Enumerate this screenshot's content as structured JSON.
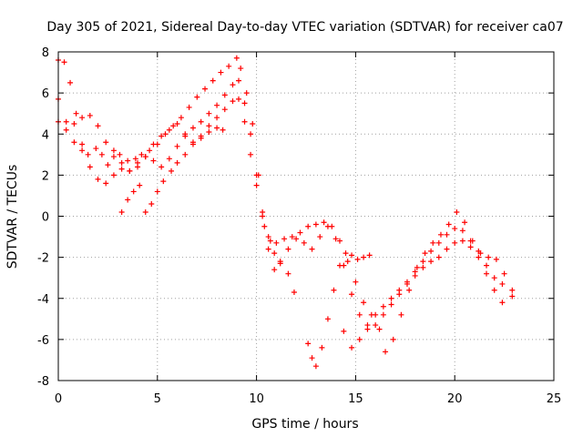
{
  "chart_data": {
    "type": "scatter",
    "title": "Day 305 of 2021, Sidereal Day-to-day VTEC variation (SDTVAR) for receiver ca07",
    "xlabel": "GPS time / hours",
    "ylabel": "SDTVAR / TECUs",
    "xlim": [
      0,
      25
    ],
    "ylim": [
      -8,
      8
    ],
    "x_ticks": [
      "0",
      "5",
      "10",
      "15",
      "20",
      "25"
    ],
    "y_ticks": [
      "8",
      "6",
      "4",
      "2",
      "0",
      "-2",
      "-4",
      "-6",
      "-8"
    ],
    "grid": true,
    "marker": "+",
    "colors": {
      "series": "#ff0000",
      "grid": "#a0a0a0",
      "axis": "#000000"
    },
    "series": [
      {
        "values": [
          [
            0.0,
            7.6
          ],
          [
            0.3,
            7.5
          ],
          [
            0.6,
            6.5
          ],
          [
            0.9,
            5.0
          ],
          [
            1.2,
            3.5
          ],
          [
            1.5,
            3.0
          ],
          [
            1.9,
            3.3
          ],
          [
            2.2,
            3.0
          ],
          [
            2.5,
            2.5
          ],
          [
            2.8,
            2.9
          ],
          [
            3.1,
            3.0
          ],
          [
            3.5,
            2.7
          ],
          [
            3.9,
            2.8
          ],
          [
            4.2,
            3.0
          ],
          [
            4.6,
            3.2
          ],
          [
            5.0,
            3.5
          ],
          [
            5.4,
            4.0
          ],
          [
            5.8,
            4.4
          ],
          [
            6.2,
            4.8
          ],
          [
            6.6,
            5.3
          ],
          [
            7.0,
            5.8
          ],
          [
            7.4,
            6.2
          ],
          [
            7.8,
            6.6
          ],
          [
            8.2,
            7.0
          ],
          [
            8.6,
            7.3
          ],
          [
            9.0,
            7.7
          ],
          [
            9.2,
            7.2
          ],
          [
            9.5,
            6.0
          ],
          [
            9.8,
            4.5
          ],
          [
            10.1,
            2.0
          ],
          [
            10.4,
            -0.5
          ],
          [
            10.7,
            -1.2
          ],
          [
            11.0,
            -1.3
          ],
          [
            11.4,
            -1.1
          ],
          [
            11.8,
            -1.0
          ],
          [
            12.2,
            -0.8
          ],
          [
            12.6,
            -0.5
          ],
          [
            13.0,
            -0.4
          ],
          [
            13.4,
            -0.3
          ],
          [
            13.8,
            -0.5
          ],
          [
            14.2,
            -1.2
          ],
          [
            14.6,
            -2.2
          ],
          [
            15.0,
            -3.2
          ],
          [
            15.4,
            -4.2
          ],
          [
            15.8,
            -4.8
          ],
          [
            16.2,
            -5.5
          ],
          [
            16.5,
            -6.6
          ],
          [
            16.9,
            -6.0
          ],
          [
            17.3,
            -4.8
          ],
          [
            17.7,
            -3.6
          ],
          [
            18.1,
            -2.5
          ],
          [
            18.5,
            -1.8
          ],
          [
            18.9,
            -1.3
          ],
          [
            19.3,
            -0.9
          ],
          [
            19.7,
            -0.4
          ],
          [
            20.1,
            0.2
          ],
          [
            20.5,
            -0.3
          ],
          [
            20.9,
            -1.2
          ],
          [
            21.3,
            -1.8
          ],
          [
            21.7,
            -2.0
          ],
          [
            22.1,
            -2.1
          ],
          [
            22.5,
            -2.8
          ],
          [
            22.9,
            -3.6
          ]
        ]
      },
      {
        "values": [
          [
            0.0,
            5.7
          ],
          [
            0.4,
            4.6
          ],
          [
            0.8,
            3.6
          ],
          [
            1.2,
            3.2
          ],
          [
            1.6,
            2.4
          ],
          [
            2.0,
            1.8
          ],
          [
            2.4,
            1.6
          ],
          [
            2.8,
            2.0
          ],
          [
            3.2,
            2.3
          ],
          [
            3.6,
            2.2
          ],
          [
            4.0,
            2.6
          ],
          [
            4.4,
            2.9
          ],
          [
            4.8,
            2.7
          ],
          [
            5.2,
            2.4
          ],
          [
            5.6,
            2.8
          ],
          [
            6.0,
            3.4
          ],
          [
            6.4,
            3.9
          ],
          [
            6.8,
            4.3
          ],
          [
            7.2,
            4.6
          ],
          [
            7.6,
            5.0
          ],
          [
            8.0,
            5.4
          ],
          [
            8.4,
            5.9
          ],
          [
            8.8,
            6.4
          ],
          [
            9.1,
            6.6
          ],
          [
            9.4,
            5.5
          ],
          [
            9.7,
            4.0
          ],
          [
            10.0,
            2.0
          ],
          [
            10.3,
            0.0
          ],
          [
            10.6,
            -1.6
          ],
          [
            10.9,
            -2.6
          ],
          [
            11.2,
            -2.3
          ],
          [
            11.6,
            -1.6
          ],
          [
            12.0,
            -1.1
          ],
          [
            12.4,
            -1.3
          ],
          [
            12.8,
            -1.6
          ],
          [
            13.2,
            -1.0
          ],
          [
            13.6,
            -0.5
          ],
          [
            14.0,
            -1.1
          ],
          [
            14.4,
            -2.4
          ],
          [
            14.8,
            -3.8
          ],
          [
            15.2,
            -4.8
          ],
          [
            15.6,
            -5.5
          ],
          [
            16.0,
            -5.3
          ],
          [
            16.4,
            -4.8
          ],
          [
            16.8,
            -4.3
          ],
          [
            17.2,
            -3.8
          ],
          [
            17.6,
            -3.2
          ],
          [
            18.0,
            -2.7
          ],
          [
            18.4,
            -2.2
          ],
          [
            18.8,
            -1.7
          ],
          [
            19.2,
            -1.3
          ],
          [
            19.6,
            -0.9
          ],
          [
            20.0,
            -0.6
          ],
          [
            20.4,
            -0.7
          ],
          [
            20.8,
            -1.2
          ],
          [
            21.2,
            -1.7
          ],
          [
            21.6,
            -2.4
          ],
          [
            22.0,
            -3.0
          ],
          [
            22.4,
            -3.3
          ],
          [
            22.9,
            -3.9
          ]
        ]
      },
      {
        "values": [
          [
            0.0,
            4.6
          ],
          [
            0.4,
            4.2
          ],
          [
            0.8,
            4.5
          ],
          [
            1.2,
            4.8
          ],
          [
            1.6,
            4.9
          ],
          [
            2.0,
            4.4
          ],
          [
            2.4,
            3.6
          ],
          [
            2.8,
            3.2
          ],
          [
            3.2,
            2.6
          ],
          [
            3.6,
            2.2
          ],
          [
            4.0,
            2.4
          ],
          [
            4.4,
            2.9
          ],
          [
            4.8,
            3.5
          ],
          [
            5.2,
            3.9
          ],
          [
            5.6,
            4.2
          ],
          [
            6.0,
            4.5
          ],
          [
            6.4,
            4.0
          ],
          [
            6.8,
            3.6
          ],
          [
            7.2,
            3.9
          ],
          [
            7.6,
            4.4
          ],
          [
            8.0,
            4.8
          ],
          [
            8.4,
            5.2
          ],
          [
            8.8,
            5.6
          ],
          [
            9.1,
            5.7
          ],
          [
            9.4,
            4.6
          ],
          [
            9.7,
            3.0
          ],
          [
            10.0,
            1.5
          ],
          [
            10.3,
            0.2
          ],
          [
            10.6,
            -1.0
          ],
          [
            10.9,
            -1.8
          ],
          [
            11.2,
            -2.2
          ],
          [
            11.6,
            -2.8
          ],
          [
            11.9,
            -3.7
          ]
        ]
      },
      {
        "values": [
          [
            3.2,
            0.2
          ],
          [
            3.5,
            0.8
          ],
          [
            3.8,
            1.2
          ],
          [
            4.1,
            1.5
          ],
          [
            4.4,
            0.2
          ],
          [
            4.7,
            0.6
          ],
          [
            5.0,
            1.2
          ],
          [
            5.3,
            1.7
          ],
          [
            5.7,
            2.2
          ],
          [
            6.0,
            2.6
          ],
          [
            6.4,
            3.0
          ],
          [
            6.8,
            3.5
          ],
          [
            7.2,
            3.8
          ],
          [
            7.6,
            4.1
          ],
          [
            8.0,
            4.3
          ],
          [
            8.3,
            4.2
          ]
        ]
      },
      {
        "values": [
          [
            12.6,
            -6.2
          ],
          [
            12.8,
            -6.9
          ],
          [
            13.0,
            -7.3
          ],
          [
            13.3,
            -6.4
          ],
          [
            13.6,
            -5.0
          ],
          [
            13.9,
            -3.6
          ],
          [
            14.2,
            -2.4
          ],
          [
            14.5,
            -1.8
          ],
          [
            14.8,
            -1.9
          ],
          [
            15.1,
            -2.1
          ],
          [
            15.4,
            -2.0
          ],
          [
            15.7,
            -1.9
          ]
        ]
      },
      {
        "values": [
          [
            14.4,
            -5.6
          ],
          [
            14.8,
            -6.4
          ],
          [
            15.2,
            -6.0
          ],
          [
            15.6,
            -5.3
          ],
          [
            16.0,
            -4.8
          ],
          [
            16.4,
            -4.4
          ],
          [
            16.8,
            -4.0
          ],
          [
            17.2,
            -3.6
          ],
          [
            17.6,
            -3.3
          ],
          [
            18.0,
            -2.9
          ],
          [
            18.4,
            -2.5
          ],
          [
            18.8,
            -2.2
          ],
          [
            19.2,
            -2.0
          ],
          [
            19.6,
            -1.6
          ],
          [
            20.0,
            -1.3
          ],
          [
            20.4,
            -1.2
          ],
          [
            20.8,
            -1.5
          ],
          [
            21.2,
            -2.0
          ],
          [
            21.6,
            -2.8
          ],
          [
            22.0,
            -3.6
          ],
          [
            22.4,
            -4.2
          ]
        ]
      }
    ]
  }
}
